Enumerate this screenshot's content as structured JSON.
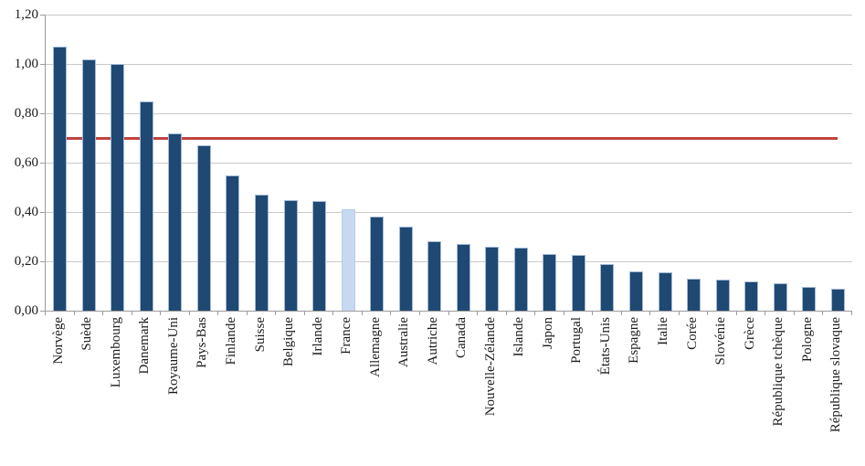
{
  "chart_data": {
    "type": "bar",
    "title": "",
    "xlabel": "",
    "ylabel": "",
    "categories": [
      "Norvège",
      "Suède",
      "Luxembourg",
      "Danemark",
      "Royaume-Uni",
      "Pays-Bas",
      "Finlande",
      "Suisse",
      "Belgique",
      "Irlande",
      "France",
      "Allemagne",
      "Australie",
      "Autriche",
      "Canada",
      "Nouvelle-Zélande",
      "Islande",
      "Japon",
      "Portugal",
      "États-Unis",
      "Espagne",
      "Italie",
      "Corée",
      "Slovénie",
      "Grèce",
      "République tchèque",
      "Pologne",
      "République slovaque"
    ],
    "values": [
      1.07,
      1.02,
      1.0,
      0.85,
      0.72,
      0.67,
      0.55,
      0.47,
      0.45,
      0.445,
      0.41,
      0.38,
      0.34,
      0.28,
      0.27,
      0.26,
      0.255,
      0.23,
      0.225,
      0.19,
      0.16,
      0.155,
      0.13,
      0.125,
      0.12,
      0.11,
      0.095,
      0.09
    ],
    "highlight_category": "France",
    "highlight_index": 10,
    "reference_line": {
      "value": 0.7,
      "color": "#c0443f",
      "span": "first-to-last-category-center"
    },
    "ylim": [
      0,
      1.2
    ],
    "ytick_step": 0.2,
    "ytick_labels": [
      "0,00",
      "0,20",
      "0,40",
      "0,60",
      "0,80",
      "1,00",
      "1,20"
    ],
    "grid": true,
    "legend": "none",
    "colors": {
      "bar": "#1f4973",
      "bar_border": "#a3bad8",
      "highlight_bar": "#c6d9f1",
      "highlight_bar_border": "#b4cdea",
      "gridline": "#c9c9c9",
      "axis": "#9c9c9c",
      "text": "#1a1a1a"
    }
  }
}
